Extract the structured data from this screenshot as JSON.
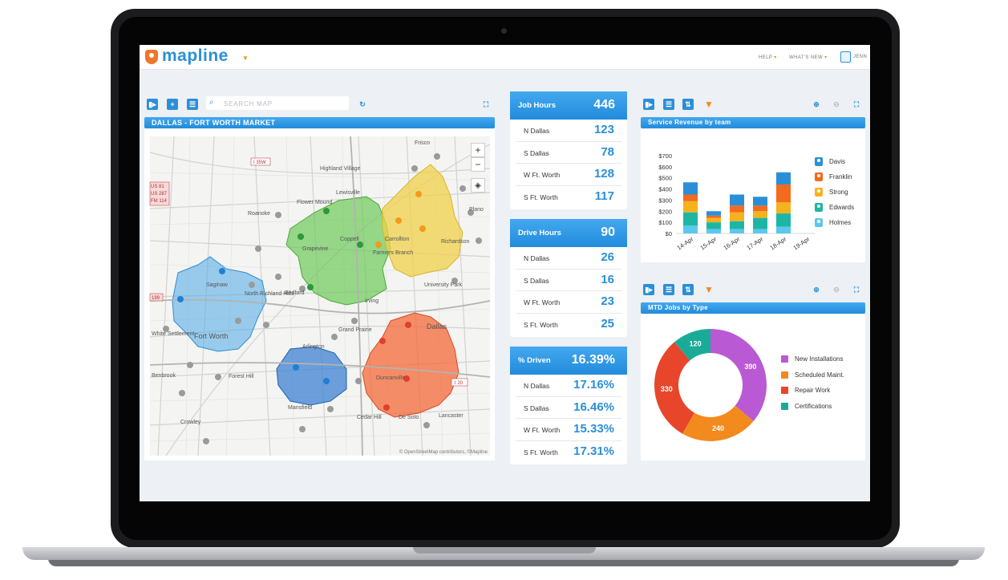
{
  "app": {
    "logo_text": "mapline",
    "nav": {
      "help": "HELP",
      "whats_new": "WHAT'S NEW",
      "user": "JENN"
    }
  },
  "map_panel": {
    "search_placeholder": "SEARCH MAP",
    "title": "DALLAS - FORT WORTH MARKET",
    "zoom_in": "+",
    "zoom_out": "−",
    "attribution": "© OpenStreetMap contributors, ©Mapline",
    "cities": [
      "Frisco",
      "Lewisville",
      "Highland Village",
      "Flower Mound",
      "Roanoke",
      "Coppell",
      "Grapevine",
      "Carrollton",
      "Richardson",
      "Plano",
      "Farmers Branch",
      "Saginaw",
      "North Richland Hills",
      "Bedford",
      "Irving",
      "University Park",
      "Dallas",
      "Fort Worth",
      "Arlington",
      "Grand Prairie",
      "White Settlement",
      "Benbrook",
      "Forest Hill",
      "Duncanville",
      "Cedar Hill",
      "De Soto",
      "Lancaster",
      "Crowley",
      "Mansfield"
    ],
    "road_labels": [
      "I 35W",
      "US 81",
      "US 287",
      "FM 114",
      "199",
      "I 20"
    ],
    "territory_colors": {
      "fort_worth": "#5aaee6",
      "grapevine": "#6cc95a",
      "richardson": "#f0d24a",
      "dallas": "#f4693a",
      "arlington": "#3d82d2"
    }
  },
  "stat_cards": [
    {
      "title": "Job Hours",
      "total": "446",
      "rows": [
        {
          "label": "N Dallas",
          "value": "123"
        },
        {
          "label": "S Dallas",
          "value": "78"
        },
        {
          "label": "W Ft. Worth",
          "value": "128"
        },
        {
          "label": "S Ft. Worth",
          "value": "117"
        }
      ]
    },
    {
      "title": "Drive Hours",
      "total": "90",
      "rows": [
        {
          "label": "N Dallas",
          "value": "26"
        },
        {
          "label": "S Dallas",
          "value": "16"
        },
        {
          "label": "W Ft. Worth",
          "value": "23"
        },
        {
          "label": "S Ft. Worth",
          "value": "25"
        }
      ]
    },
    {
      "title": "% Driven",
      "total": "16.39%",
      "rows": [
        {
          "label": "N Dallas",
          "value": "17.16%"
        },
        {
          "label": "S Dallas",
          "value": "16.46%"
        },
        {
          "label": "W Ft. Worth",
          "value": "15.33%"
        },
        {
          "label": "S Ft. Worth",
          "value": "17.31%"
        }
      ]
    }
  ],
  "charts": {
    "revenue_title": "Service Revenue by team",
    "jobs_title": "MTD Jobs by Type"
  },
  "chart_data": [
    {
      "type": "bar",
      "stacked": true,
      "title": "Service Revenue by team",
      "categories": [
        "14-Apr",
        "15-Apr",
        "16-Apr",
        "17-Apr",
        "18-Apr",
        "19-Apr"
      ],
      "y_ticks": [
        "$0",
        "$100",
        "$200",
        "$300",
        "$400",
        "$500",
        "$600",
        "$700"
      ],
      "ylim": [
        0,
        700
      ],
      "legend_position": "right",
      "series": [
        {
          "name": "Holmes",
          "color": "#5bc8f0",
          "values": [
            70,
            40,
            40,
            40,
            60,
            0
          ]
        },
        {
          "name": "Edwards",
          "color": "#1fb5a5",
          "values": [
            120,
            60,
            70,
            100,
            120,
            0
          ]
        },
        {
          "name": "Strong",
          "color": "#f5b21f",
          "values": [
            100,
            40,
            80,
            60,
            100,
            0
          ]
        },
        {
          "name": "Franklin",
          "color": "#f46a1f",
          "values": [
            60,
            20,
            60,
            50,
            160,
            0
          ]
        },
        {
          "name": "Davis",
          "color": "#2b8fd8",
          "values": [
            110,
            40,
            100,
            80,
            110,
            0
          ]
        }
      ]
    },
    {
      "type": "pie",
      "donut": true,
      "title": "MTD Jobs by Type",
      "legend_position": "right",
      "slices": [
        {
          "label": "New Installations",
          "value": 390,
          "color": "#b95ad4"
        },
        {
          "label": "Scheduled Maint.",
          "value": 240,
          "color": "#f28a1e"
        },
        {
          "label": "Repair Work",
          "value": 330,
          "color": "#e8462a"
        },
        {
          "label": "Certifications",
          "value": 120,
          "color": "#1aab98"
        }
      ]
    }
  ]
}
